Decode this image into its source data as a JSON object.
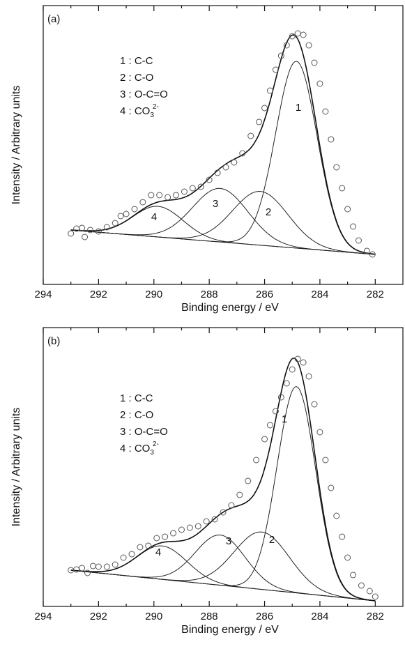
{
  "chart_data": [
    {
      "type": "xps",
      "panel_label": "(a)",
      "xlabel": "Binding energy / eV",
      "ylabel": "Intensity / Arbitrary units",
      "xlim": [
        294,
        281
      ],
      "ylim": [
        0,
        100
      ],
      "xticks": [
        294,
        292,
        290,
        288,
        286,
        284,
        282
      ],
      "xticks_minor": [
        293,
        291,
        289,
        287,
        285,
        283
      ],
      "legend": [
        {
          "text": "1 : C-C"
        },
        {
          "text": "2 : C-O"
        },
        {
          "text": "3 : O-C=O"
        },
        {
          "text": "4 : CO",
          "sub": "3",
          "sup": "2-"
        }
      ],
      "baseline": {
        "x": [
          293,
          282
        ],
        "values": [
          19.5,
          10.75
        ]
      },
      "peaks": [
        {
          "label": "1",
          "center": 284.85,
          "height": 67,
          "width": 0.75
        },
        {
          "label": "2",
          "center": 286.15,
          "height": 19.3,
          "width": 1.0
        },
        {
          "label": "3",
          "center": 287.6,
          "height": 19.2,
          "width": 1.0
        },
        {
          "label": "4",
          "center": 289.85,
          "height": 11,
          "width": 0.9
        }
      ],
      "points": {
        "x": [
          293,
          292.8,
          292.6,
          292.5,
          292.3,
          292,
          291.7,
          291.4,
          291.2,
          291,
          290.7,
          290.4,
          290.1,
          289.8,
          289.5,
          289.2,
          288.9,
          288.6,
          288.3,
          288,
          287.7,
          287.4,
          287.1,
          286.8,
          286.5,
          286.2,
          286,
          285.8,
          285.6,
          285.4,
          285.2,
          285,
          284.8,
          284.6,
          284.4,
          284.2,
          284,
          283.8,
          283.6,
          283.4,
          283.2,
          283,
          282.8,
          282.6,
          282.3,
          282.1
        ],
        "values": [
          18.25,
          20,
          20.25,
          17,
          19.5,
          19,
          20.5,
          22,
          24.5,
          25.25,
          27,
          29.5,
          32,
          32,
          31.25,
          32,
          33.25,
          34.5,
          35,
          37.5,
          40,
          42,
          43.75,
          47,
          53.25,
          58.25,
          63.25,
          69.5,
          77,
          82,
          85.75,
          89,
          90,
          89.5,
          85.75,
          79.5,
          72,
          62,
          52,
          42,
          34.5,
          27,
          20.75,
          15.75,
          12,
          10.75
        ]
      }
    },
    {
      "type": "xps",
      "panel_label": "(b)",
      "xlabel": "Binding energy / eV",
      "ylabel": "Intensity / Arbitrary units",
      "xlim": [
        294,
        281
      ],
      "ylim": [
        0,
        100
      ],
      "xticks": [
        294,
        292,
        290,
        288,
        286,
        284,
        282
      ],
      "xticks_minor": [
        293,
        291,
        289,
        287,
        285,
        283
      ],
      "legend": [
        {
          "text": "1 : C-C"
        },
        {
          "text": "2 : C-O"
        },
        {
          "text": "3 : O-C=O"
        },
        {
          "text": "4 : CO",
          "sub": "3",
          "sup": "2-"
        }
      ],
      "baseline": {
        "x": [
          293,
          282
        ],
        "values": [
          13,
          2
        ]
      },
      "peaks": [
        {
          "label": "1",
          "center": 284.85,
          "height": 74,
          "width": 0.7
        },
        {
          "label": "2",
          "center": 286.1,
          "height": 20.6,
          "width": 1.0
        },
        {
          "label": "3",
          "center": 287.6,
          "height": 18,
          "width": 0.9
        },
        {
          "label": "4",
          "center": 289.7,
          "height": 12,
          "width": 0.9
        }
      ],
      "points": {
        "x": [
          293,
          292.8,
          292.6,
          292.4,
          292.2,
          292,
          291.7,
          291.4,
          291.1,
          290.8,
          290.5,
          290.2,
          289.9,
          289.6,
          289.3,
          289,
          288.7,
          288.4,
          288.1,
          287.8,
          287.5,
          287.2,
          286.9,
          286.6,
          286.3,
          286,
          285.8,
          285.6,
          285.4,
          285.2,
          285,
          284.8,
          284.6,
          284.4,
          284.2,
          284,
          283.8,
          283.6,
          283.4,
          283.2,
          283,
          282.8,
          282.5,
          282.2,
          282
        ],
        "values": [
          13,
          13.25,
          13.75,
          12,
          14.5,
          14.25,
          14.25,
          15,
          17.5,
          18.75,
          21.25,
          21.75,
          24.5,
          25,
          26.25,
          27.5,
          28.25,
          28.75,
          30.5,
          31.25,
          33.75,
          36.25,
          40,
          45,
          52.5,
          60,
          65,
          70,
          75,
          80,
          85,
          88.75,
          87.5,
          82.5,
          72.5,
          62.5,
          52.5,
          42.5,
          32.5,
          25,
          17.5,
          11.25,
          7.5,
          5.5,
          3.5
        ]
      }
    }
  ]
}
